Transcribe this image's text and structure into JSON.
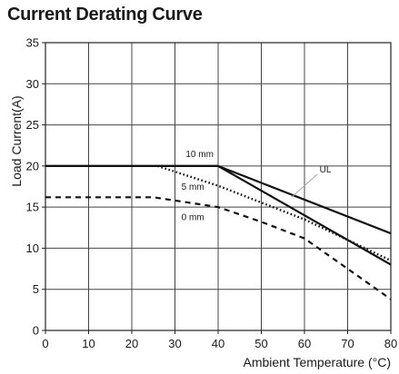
{
  "chart_data": {
    "type": "line",
    "title": "Current Derating Curve",
    "xlabel": "Ambient Temperature (°C)",
    "ylabel": "Load Current(A)",
    "xlim": [
      0,
      80
    ],
    "ylim": [
      0,
      35
    ],
    "xticks": [
      0,
      10,
      20,
      30,
      40,
      50,
      60,
      70,
      80
    ],
    "yticks": [
      0,
      5,
      10,
      15,
      20,
      25,
      30,
      35
    ],
    "grid": true,
    "series": [
      {
        "name": "UL",
        "style": "solid",
        "points": [
          [
            0,
            20
          ],
          [
            40,
            20
          ],
          [
            80,
            11.8
          ]
        ]
      },
      {
        "name": "10 mm",
        "style": "solid",
        "points": [
          [
            0,
            20
          ],
          [
            40,
            20
          ],
          [
            80,
            8
          ]
        ]
      },
      {
        "name": "5 mm",
        "style": "dotted",
        "points": [
          [
            26,
            20
          ],
          [
            40,
            17.6
          ],
          [
            60,
            13.5
          ],
          [
            80,
            8.5
          ]
        ]
      },
      {
        "name": "0 mm",
        "style": "dashed",
        "points": [
          [
            0,
            16.2
          ],
          [
            25,
            16.2
          ],
          [
            40,
            15
          ],
          [
            50,
            13.2
          ],
          [
            60,
            11.2
          ],
          [
            80,
            3.8
          ]
        ]
      }
    ],
    "annotations": [
      {
        "text": "10 mm",
        "x": 32.5,
        "y": 21.1
      },
      {
        "text": "UL",
        "x": 63.5,
        "y": 19.2
      },
      {
        "text": "5 mm",
        "x": 31.5,
        "y": 17.1
      },
      {
        "text": "0 mm",
        "x": 31.5,
        "y": 13.4
      }
    ]
  }
}
